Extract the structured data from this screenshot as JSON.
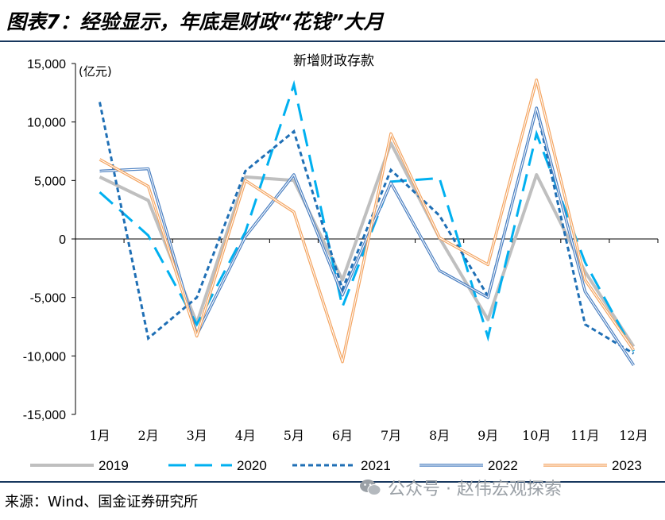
{
  "header": {
    "title": "图表7：经验显示，年底是财政“花钱”大月"
  },
  "footer": {
    "source": "来源：Wind、国金证券研究所"
  },
  "watermark": {
    "text": "公众号 · 赵伟宏观探索",
    "icon": "wechat-icon"
  },
  "chart_data": {
    "type": "line",
    "title": "新增财政存款",
    "unit_label": "(亿元)",
    "xlabel": "",
    "ylabel": "",
    "categories": [
      "1月",
      "2月",
      "3月",
      "4月",
      "5月",
      "6月",
      "7月",
      "8月",
      "9月",
      "10月",
      "11月",
      "12月"
    ],
    "ylim": [
      -15000,
      15000
    ],
    "yticks": [
      15000,
      10000,
      5000,
      0,
      -5000,
      -10000,
      -15000
    ],
    "ytick_labels": [
      "15,000",
      "10,000",
      "5,000",
      "0",
      "-5,000",
      "-10,000",
      "-15,000"
    ],
    "grid": false,
    "legend_position": "bottom",
    "series": [
      {
        "name": "2019",
        "color": "#bfbfbf",
        "style": "solid-thick",
        "values": [
          5300,
          3300,
          -7200,
          5300,
          5000,
          -3500,
          8200,
          100,
          -6900,
          5500,
          -2800,
          -9200
        ]
      },
      {
        "name": "2020",
        "color": "#00b0f0",
        "style": "long-dash",
        "values": [
          4000,
          300,
          -7300,
          600,
          13200,
          -5800,
          4900,
          5200,
          -8400,
          9000,
          -2000,
          -9600
        ]
      },
      {
        "name": "2021",
        "color": "#1f6fb5",
        "style": "short-dash",
        "values": [
          11700,
          -8500,
          -5000,
          5800,
          9200,
          -4300,
          5900,
          2000,
          -4900,
          11200,
          -7300,
          -9800
        ]
      },
      {
        "name": "2022",
        "color": "#4a7fc1",
        "style": "double",
        "values": [
          5800,
          6000,
          -8200,
          200,
          5500,
          -4800,
          4800,
          -2700,
          -5000,
          11200,
          -4500,
          -10800
        ]
      },
      {
        "name": "2023",
        "color": "#f4a460",
        "style": "double",
        "values": [
          6800,
          4500,
          -8300,
          5000,
          2300,
          -10500,
          9000,
          100,
          -2200,
          13600,
          -3500,
          -9500
        ]
      }
    ]
  }
}
